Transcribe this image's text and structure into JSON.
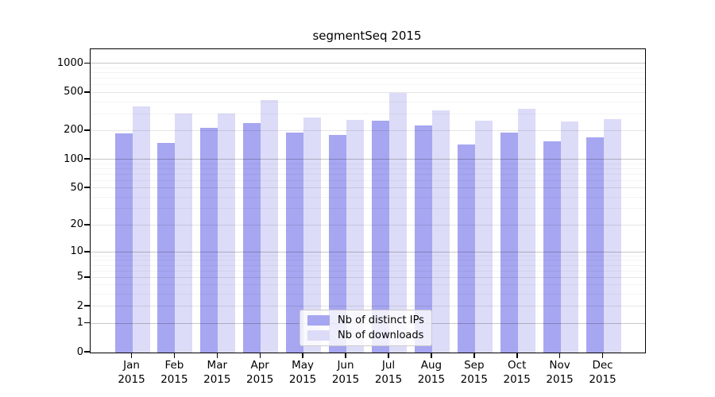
{
  "chart_data": {
    "type": "bar",
    "title": "segmentSeq 2015",
    "categories": [
      "Jan",
      "Feb",
      "Mar",
      "Apr",
      "May",
      "Jun",
      "Jul",
      "Aug",
      "Sep",
      "Oct",
      "Nov",
      "Dec"
    ],
    "year": "2015",
    "series": [
      {
        "name": "Nb of distinct IPs",
        "color": "#a6a6f1",
        "values": [
          188,
          150,
          214,
          242,
          193,
          181,
          257,
          228,
          145,
          193,
          157,
          173
        ]
      },
      {
        "name": "Nb of downloads",
        "color": "#dcdcf8",
        "values": [
          361,
          303,
          303,
          422,
          279,
          262,
          503,
          328,
          254,
          338,
          249,
          266
        ]
      }
    ],
    "yscale": "log1p",
    "yticks": [
      0,
      1,
      2,
      5,
      10,
      20,
      50,
      100,
      200,
      500,
      1000
    ],
    "ylim": [
      0,
      1420
    ],
    "xlabel": "",
    "ylabel": "",
    "grid": "horizontal",
    "legend_position": "lower center"
  }
}
